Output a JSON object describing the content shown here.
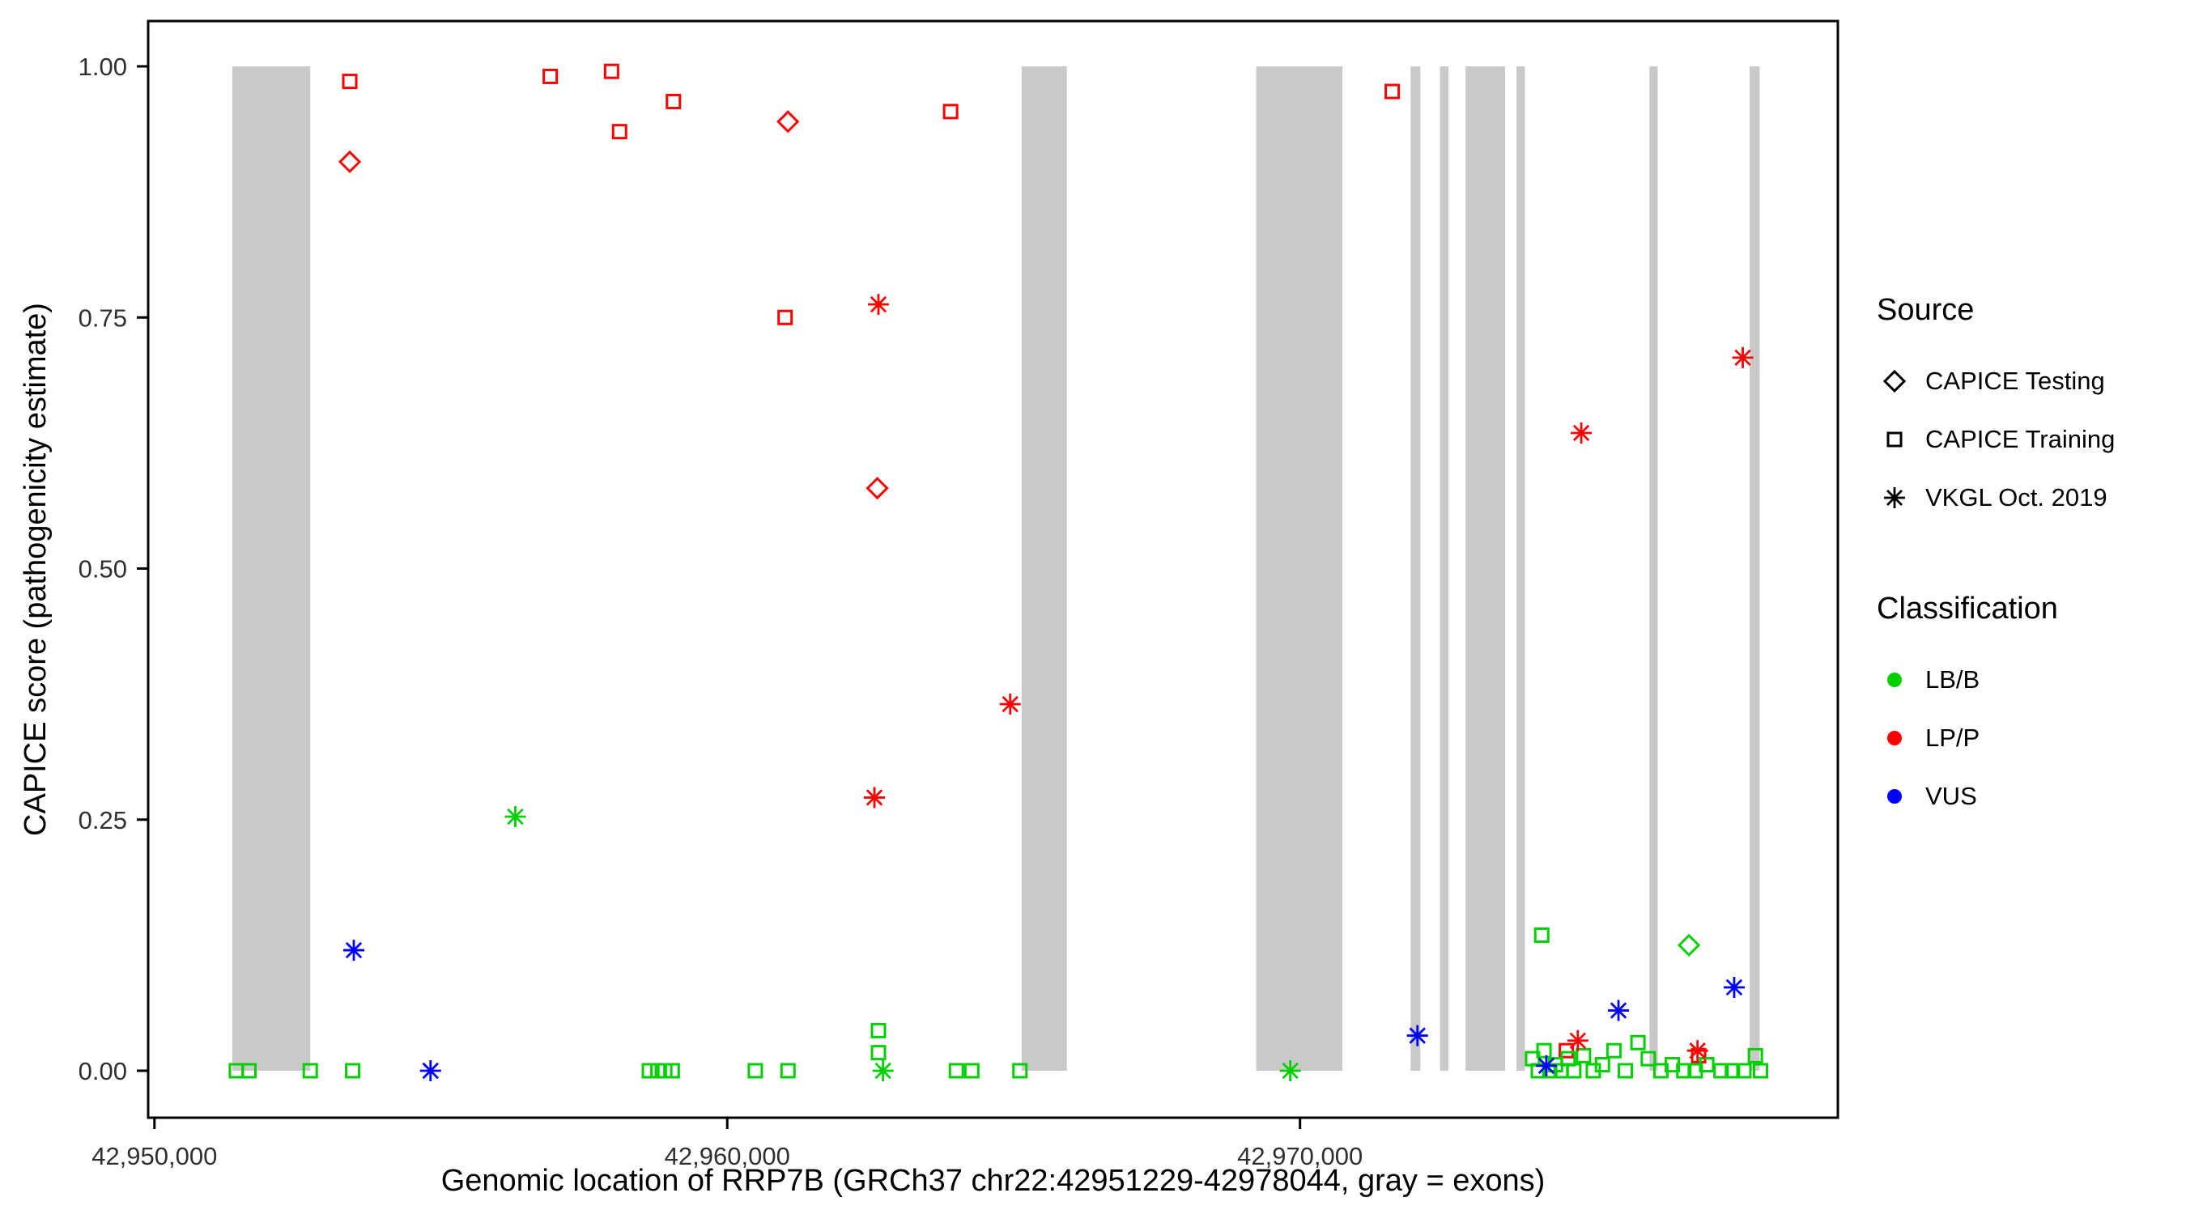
{
  "chart_data": {
    "type": "scatter",
    "title": "",
    "xlabel": "Genomic location of RRP7B (GRCh37 chr22:42951229-42978044, gray = exons)",
    "ylabel": "CAPICE score (pathogenicity estimate)",
    "xlim": [
      42949890,
      42979390
    ],
    "ylim": [
      0.0,
      1.0
    ],
    "grid": false,
    "legend_position": "right",
    "x_ticks": [
      {
        "value": 42950000,
        "label": "42,950,000"
      },
      {
        "value": 42960000,
        "label": "42,960,000"
      },
      {
        "value": 42970000,
        "label": "42,970,000"
      }
    ],
    "y_ticks": [
      {
        "value": 0.0,
        "label": "0.00"
      },
      {
        "value": 0.25,
        "label": "0.25"
      },
      {
        "value": 0.5,
        "label": "0.50"
      },
      {
        "value": 0.75,
        "label": "0.75"
      },
      {
        "value": 1.0,
        "label": "1.00"
      }
    ],
    "exon_color": "#c9c9c9",
    "exons": [
      [
        42951360,
        42952720
      ],
      [
        42965140,
        42965930
      ],
      [
        42969235,
        42970740
      ],
      [
        42971930,
        42972100
      ],
      [
        42972445,
        42972590
      ],
      [
        42972890,
        42973580
      ],
      [
        42973780,
        42973925
      ],
      [
        42976100,
        42976245
      ],
      [
        42977850,
        42978025
      ]
    ],
    "colors": {
      "LB/B": "#00cf00",
      "LP/P": "#fe0000",
      "VUS": "#0000fe"
    },
    "shapes": {
      "CAPICE Testing": "diamond",
      "CAPICE Training": "square",
      "VKGL Oct. 2019": "asterisk"
    },
    "series": [
      {
        "source": "CAPICE Testing",
        "classification": "LP/P",
        "shape": "diamond",
        "color": "#fe0000",
        "points": [
          [
            42953410,
            0.905
          ],
          [
            42961060,
            0.945
          ],
          [
            42962620,
            0.58
          ]
        ]
      },
      {
        "source": "CAPICE Testing",
        "classification": "LB/B",
        "shape": "diamond",
        "color": "#00cf00",
        "points": [
          [
            42976790,
            0.125
          ]
        ]
      },
      {
        "source": "CAPICE Training",
        "classification": "LP/P",
        "shape": "square",
        "color": "#fe0000",
        "points": [
          [
            42953410,
            0.985
          ],
          [
            42956910,
            0.99
          ],
          [
            42957980,
            0.995
          ],
          [
            42958120,
            0.935
          ],
          [
            42959060,
            0.965
          ],
          [
            42961010,
            0.75
          ],
          [
            42963900,
            0.955
          ],
          [
            42971610,
            0.975
          ],
          [
            42974650,
            0.02
          ],
          [
            42976960,
            0.015
          ]
        ]
      },
      {
        "source": "CAPICE Training",
        "classification": "LB/B",
        "shape": "square",
        "color": "#00cf00",
        "points": [
          [
            42951430,
            0.0
          ],
          [
            42951650,
            0.0
          ],
          [
            42952720,
            0.0
          ],
          [
            42953460,
            0.0
          ],
          [
            42958640,
            0.0
          ],
          [
            42958790,
            0.0
          ],
          [
            42958910,
            0.0
          ],
          [
            42959040,
            0.0
          ],
          [
            42960490,
            0.0
          ],
          [
            42961060,
            0.0
          ],
          [
            42962640,
            0.04
          ],
          [
            42962640,
            0.018
          ],
          [
            42964000,
            0.0
          ],
          [
            42964270,
            0.0
          ],
          [
            42965110,
            0.0
          ],
          [
            42974220,
            0.135
          ],
          [
            42974060,
            0.012
          ],
          [
            42974160,
            0.0
          ],
          [
            42974260,
            0.02
          ],
          [
            42974360,
            0.0
          ],
          [
            42974460,
            0.006
          ],
          [
            42974560,
            0.0
          ],
          [
            42974680,
            0.012
          ],
          [
            42974780,
            0.0
          ],
          [
            42974950,
            0.015
          ],
          [
            42975120,
            0.0
          ],
          [
            42975280,
            0.006
          ],
          [
            42975480,
            0.02
          ],
          [
            42975680,
            0.0
          ],
          [
            42975900,
            0.028
          ],
          [
            42976080,
            0.012
          ],
          [
            42976300,
            0.0
          ],
          [
            42976500,
            0.006
          ],
          [
            42976700,
            0.0
          ],
          [
            42976900,
            0.0
          ],
          [
            42977100,
            0.006
          ],
          [
            42977350,
            0.0
          ],
          [
            42977550,
            0.0
          ],
          [
            42977750,
            0.0
          ],
          [
            42977950,
            0.015
          ],
          [
            42978040,
            0.0
          ]
        ]
      },
      {
        "source": "VKGL Oct. 2019",
        "classification": "LP/P",
        "shape": "asterisk",
        "color": "#fe0000",
        "points": [
          [
            42962640,
            0.763
          ],
          [
            42962570,
            0.272
          ],
          [
            42964940,
            0.365
          ],
          [
            42974850,
            0.03
          ],
          [
            42974910,
            0.635
          ],
          [
            42976940,
            0.02
          ],
          [
            42977730,
            0.71
          ]
        ]
      },
      {
        "source": "VKGL Oct. 2019",
        "classification": "LB/B",
        "shape": "asterisk",
        "color": "#00cf00",
        "points": [
          [
            42956300,
            0.253
          ],
          [
            42962720,
            0.0
          ],
          [
            42969830,
            0.0
          ]
        ]
      },
      {
        "source": "VKGL Oct. 2019",
        "classification": "VUS",
        "shape": "asterisk",
        "color": "#0000fe",
        "points": [
          [
            42953480,
            0.12
          ],
          [
            42954820,
            0.0
          ],
          [
            42972050,
            0.035
          ],
          [
            42974300,
            0.005
          ],
          [
            42975560,
            0.06
          ],
          [
            42977580,
            0.083
          ]
        ]
      }
    ],
    "legend": {
      "source": {
        "title": "Source",
        "items": [
          {
            "label": "CAPICE Testing",
            "shape": "diamond"
          },
          {
            "label": "CAPICE Training",
            "shape": "square"
          },
          {
            "label": "VKGL Oct. 2019",
            "shape": "asterisk"
          }
        ]
      },
      "classification": {
        "title": "Classification",
        "items": [
          {
            "label": "LB/B",
            "color": "#00cf00"
          },
          {
            "label": "LP/P",
            "color": "#fe0000"
          },
          {
            "label": "VUS",
            "color": "#0000fe"
          }
        ]
      }
    }
  }
}
